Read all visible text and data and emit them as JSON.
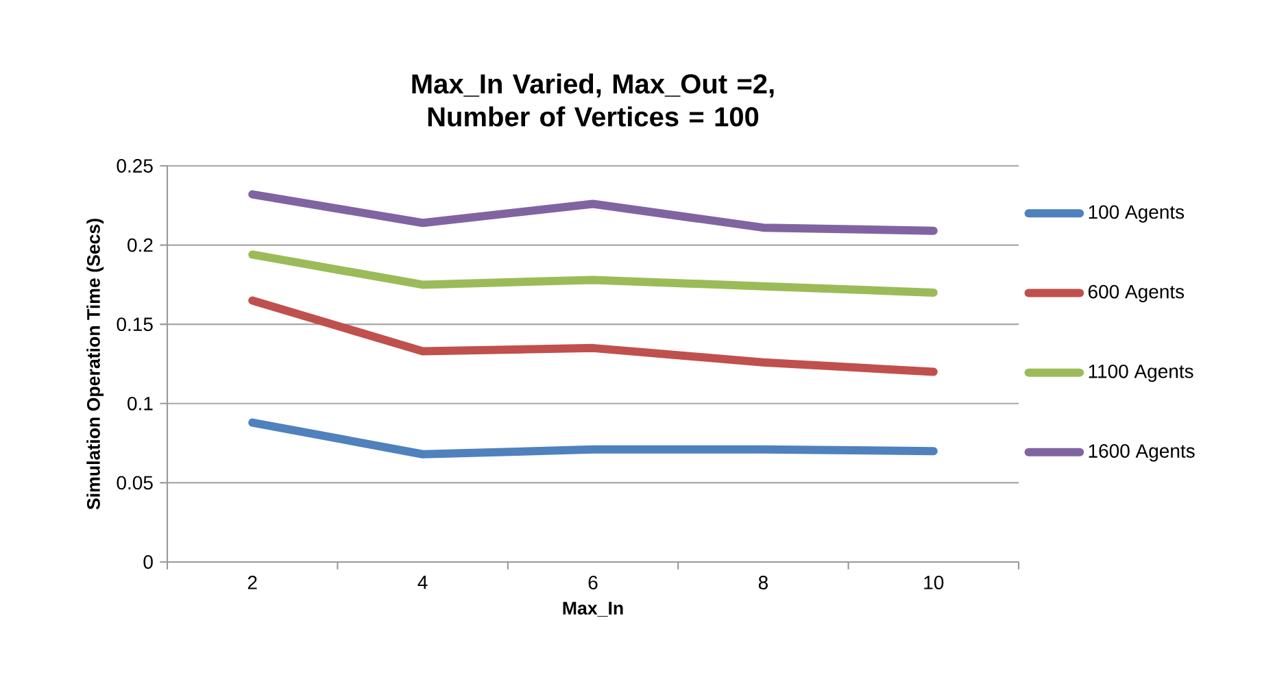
{
  "chart_data": {
    "type": "line",
    "title": "Max_In Varied, Max_Out =2, Number of Vertices = 100",
    "xlabel": "Max_In",
    "ylabel": "Simulation Operation Time (Secs)",
    "categories": [
      "2",
      "4",
      "6",
      "8",
      "10"
    ],
    "series": [
      {
        "name": "100 Agents",
        "color": "#4f81bd",
        "values": [
          0.088,
          0.068,
          0.071,
          0.071,
          0.07
        ]
      },
      {
        "name": "600 Agents",
        "color": "#c0504d",
        "values": [
          0.165,
          0.133,
          0.135,
          0.126,
          0.12
        ]
      },
      {
        "name": "1100 Agents",
        "color": "#9bbb59",
        "values": [
          0.194,
          0.175,
          0.178,
          0.174,
          0.17
        ]
      },
      {
        "name": "1600 Agents",
        "color": "#8064a2",
        "values": [
          0.232,
          0.214,
          0.226,
          0.211,
          0.209
        ]
      }
    ],
    "ylim": [
      0,
      0.25
    ],
    "yticks": [
      0,
      0.05,
      0.1,
      0.15,
      0.2,
      0.25
    ],
    "grid": "y",
    "legend": "right",
    "marker": "none",
    "line_style": "solid"
  }
}
